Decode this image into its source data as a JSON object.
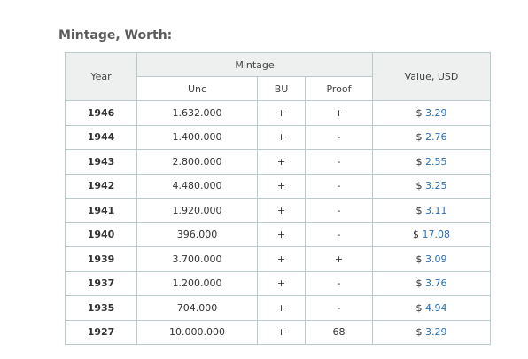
{
  "section_title": "Mintage, Worth:",
  "headers": {
    "year": "Year",
    "mintage": "Mintage",
    "unc": "Unc",
    "bu": "BU",
    "proof": "Proof",
    "value": "Value, USD"
  },
  "currency_symbol": "$",
  "rows": [
    {
      "year": "1946",
      "unc": "1.632.000",
      "bu": "+",
      "proof": "+",
      "value": "3.29"
    },
    {
      "year": "1944",
      "unc": "1.400.000",
      "bu": "+",
      "proof": "-",
      "value": "2.76"
    },
    {
      "year": "1943",
      "unc": "2.800.000",
      "bu": "+",
      "proof": "-",
      "value": "2.55"
    },
    {
      "year": "1942",
      "unc": "4.480.000",
      "bu": "+",
      "proof": "-",
      "value": "3.25"
    },
    {
      "year": "1941",
      "unc": "1.920.000",
      "bu": "+",
      "proof": "-",
      "value": "3.11"
    },
    {
      "year": "1940",
      "unc": "396.000",
      "bu": "+",
      "proof": "-",
      "value": "17.08"
    },
    {
      "year": "1939",
      "unc": "3.700.000",
      "bu": "+",
      "proof": "+",
      "value": "3.09"
    },
    {
      "year": "1937",
      "unc": "1.200.000",
      "bu": "+",
      "proof": "-",
      "value": "3.76"
    },
    {
      "year": "1935",
      "unc": "704.000",
      "bu": "+",
      "proof": "-",
      "value": "4.94"
    },
    {
      "year": "1927",
      "unc": "10.000.000",
      "bu": "+",
      "proof": "68",
      "value": "3.29"
    }
  ],
  "colors": {
    "link": "#2a6fb7",
    "header_bg": "#eef0f0",
    "border": "#b9c9cc"
  }
}
